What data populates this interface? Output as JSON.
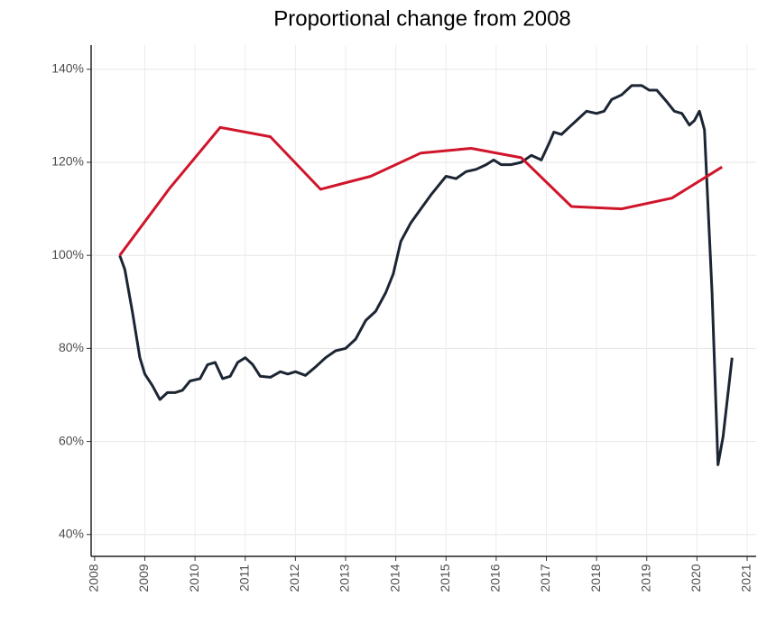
{
  "chart_data": {
    "type": "line",
    "title": "Proportional change from 2008",
    "xlim": [
      2007.93,
      2021.18
    ],
    "xticks": [
      2008,
      2009,
      2010,
      2011,
      2012,
      2013,
      2014,
      2015,
      2016,
      2017,
      2018,
      2019,
      2020,
      2021
    ],
    "ylim": [
      35.3,
      145.2
    ],
    "yticks": [
      {
        "value": 40,
        "label": "40%"
      },
      {
        "value": 60,
        "label": "60%"
      },
      {
        "value": 80,
        "label": "80%"
      },
      {
        "value": 100,
        "label": "100%"
      },
      {
        "value": 120,
        "label": "120%"
      },
      {
        "value": 140,
        "label": "140%"
      }
    ],
    "grid": true,
    "series": [
      {
        "color": "#1c2533",
        "x": [
          2008.5,
          2008.6,
          2008.75,
          2008.9,
          2009.0,
          2009.15,
          2009.3,
          2009.45,
          2009.6,
          2009.75,
          2009.9,
          2010.1,
          2010.25,
          2010.4,
          2010.55,
          2010.7,
          2010.85,
          2011.0,
          2011.15,
          2011.3,
          2011.5,
          2011.7,
          2011.85,
          2012.0,
          2012.2,
          2012.4,
          2012.6,
          2012.8,
          2013.0,
          2013.2,
          2013.4,
          2013.6,
          2013.8,
          2013.95,
          2014.1,
          2014.3,
          2014.5,
          2014.7,
          2014.85,
          2015.0,
          2015.2,
          2015.4,
          2015.6,
          2015.8,
          2015.95,
          2016.1,
          2016.3,
          2016.5,
          2016.7,
          2016.9,
          2017.05,
          2017.15,
          2017.3,
          2017.45,
          2017.6,
          2017.8,
          2018.0,
          2018.15,
          2018.3,
          2018.5,
          2018.7,
          2018.9,
          2019.05,
          2019.2,
          2019.4,
          2019.55,
          2019.7,
          2019.85,
          2019.95,
          2020.05,
          2020.15,
          2020.3,
          2020.42,
          2020.52,
          2020.7
        ],
        "values": [
          100,
          97,
          88,
          78,
          74.5,
          72,
          69,
          70.5,
          70.5,
          71,
          73,
          73.5,
          76.5,
          77,
          73.5,
          74,
          77,
          78,
          76.5,
          74,
          73.8,
          75,
          74.5,
          75,
          74.2,
          76,
          78,
          79.5,
          80,
          82,
          86,
          88,
          92,
          96,
          103,
          107,
          110,
          113,
          115,
          117,
          116.5,
          118,
          118.5,
          119.5,
          120.5,
          119.5,
          119.5,
          120,
          121.5,
          120.5,
          124,
          126.5,
          126,
          127.5,
          129,
          131,
          130.5,
          131,
          133.5,
          134.5,
          136.5,
          136.5,
          135.5,
          135.5,
          133,
          131,
          130.5,
          128,
          129,
          131,
          127,
          92,
          55,
          61,
          78
        ]
      },
      {
        "color": "#d0152b",
        "x": [
          2008.5,
          2009.5,
          2010.5,
          2011.5,
          2012.5,
          2013.5,
          2014.5,
          2015.5,
          2016.5,
          2017.5,
          2018.5,
          2019.5,
          2020.5
        ],
        "values": [
          100,
          114.5,
          127.5,
          125.5,
          114.2,
          117,
          122,
          123,
          121,
          110.5,
          110,
          112.3,
          119
        ]
      }
    ]
  }
}
